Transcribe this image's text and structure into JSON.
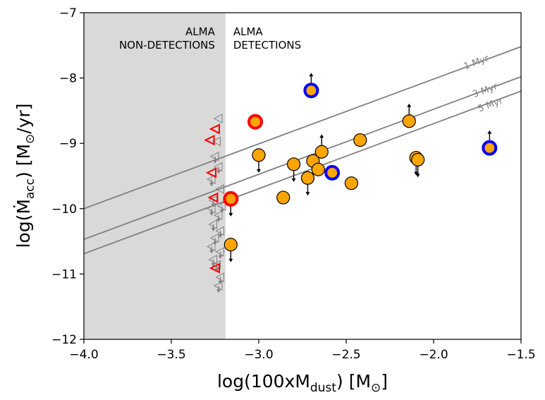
{
  "chart_data": {
    "type": "scatter",
    "title": "",
    "xlabel": "log(100xM",
    "xlabel_sub": "dust",
    "xlabel_unit_open": ") [M",
    "xlabel_unit_sub": "⊙",
    "xlabel_unit_close": "]",
    "ylabel": "log(Ṁ",
    "ylabel_sub": "acc",
    "ylabel_unit_open": ") [M",
    "ylabel_unit_sub": "⊙",
    "ylabel_unit_close": "/yr]",
    "xlim": [
      -4.0,
      -1.5
    ],
    "ylim": [
      -12,
      -7
    ],
    "xticks": [
      -4.0,
      -3.5,
      -3.0,
      -2.5,
      -2.0,
      -1.5
    ],
    "xtick_labels": [
      "−4.0",
      "−3.5",
      "−3.0",
      "−2.5",
      "−2.0",
      "−1.5"
    ],
    "yticks": [
      -12,
      -11,
      -10,
      -9,
      -8,
      -7
    ],
    "ytick_labels": [
      "−12",
      "−11",
      "−10",
      "−9",
      "−8",
      "−7"
    ],
    "grid": false,
    "nondetection_region": {
      "x_range": [
        -4.0,
        -3.19
      ],
      "color": "#d9d9d9",
      "label_left_line1": "ALMA",
      "label_left_line2": "NON-DETECTIONS",
      "label_right_line1": "ALMA",
      "label_right_line2": "DETECTIONS"
    },
    "isochrones": [
      {
        "label": "1 Myr",
        "x": [
          -4.0,
          -1.5
        ],
        "y": [
          -10.0,
          -7.52
        ],
        "color": "#808080",
        "label_at": [
          -1.75,
          -7.8
        ]
      },
      {
        "label": "3 Myr",
        "x": [
          -4.0,
          -1.5
        ],
        "y": [
          -10.47,
          -7.98
        ],
        "color": "#808080",
        "label_at": [
          -1.7,
          -8.23
        ]
      },
      {
        "label": "5 Myr",
        "x": [
          -4.0,
          -1.5
        ],
        "y": [
          -10.69,
          -8.2
        ],
        "color": "#808080",
        "label_at": [
          -1.67,
          -8.45
        ]
      }
    ],
    "colors": {
      "detection_fill": "#ffa500",
      "detection_edge": "#000000",
      "red_ring": "#ff0000",
      "blue_ring": "#0000ff",
      "upper_limit": "#808080"
    },
    "detections": [
      {
        "x": -2.7,
        "y": -8.19,
        "ring": "blue",
        "arrow": "up"
      },
      {
        "x": -3.02,
        "y": -8.67,
        "ring": "red",
        "arrow": "none"
      },
      {
        "x": -3.0,
        "y": -9.18,
        "ring": "none",
        "arrow": "down"
      },
      {
        "x": -2.8,
        "y": -9.32,
        "ring": "none",
        "arrow": "down"
      },
      {
        "x": -2.72,
        "y": -9.53,
        "ring": "none",
        "arrow": "down"
      },
      {
        "x": -2.69,
        "y": -9.27,
        "ring": "none",
        "arrow": "none"
      },
      {
        "x": -2.66,
        "y": -9.4,
        "ring": "none",
        "arrow": "none"
      },
      {
        "x": -2.64,
        "y": -9.13,
        "ring": "none",
        "arrow": "up"
      },
      {
        "x": -2.58,
        "y": -9.45,
        "ring": "blue",
        "arrow": "none"
      },
      {
        "x": -2.47,
        "y": -9.61,
        "ring": "none",
        "arrow": "none"
      },
      {
        "x": -2.42,
        "y": -8.95,
        "ring": "none",
        "arrow": "none"
      },
      {
        "x": -2.86,
        "y": -9.83,
        "ring": "none",
        "arrow": "none"
      },
      {
        "x": -3.16,
        "y": -9.85,
        "ring": "red",
        "arrow": "down"
      },
      {
        "x": -3.16,
        "y": -10.55,
        "ring": "none",
        "arrow": "down"
      },
      {
        "x": -2.14,
        "y": -8.66,
        "ring": "none",
        "arrow": "up"
      },
      {
        "x": -2.1,
        "y": -9.22,
        "ring": "none",
        "arrow": "down"
      },
      {
        "x": -2.09,
        "y": -9.25,
        "ring": "none",
        "arrow": "down"
      },
      {
        "x": -1.68,
        "y": -9.07,
        "ring": "blue",
        "arrow": "up"
      }
    ],
    "nondetections_red": [
      {
        "x": -3.25,
        "y": -8.78
      },
      {
        "x": -3.28,
        "y": -8.95
      },
      {
        "x": -3.27,
        "y": -9.45
      },
      {
        "x": -3.26,
        "y": -9.83
      },
      {
        "x": -3.25,
        "y": -10.91
      }
    ],
    "nondetections_grey": [
      {
        "x": -3.23,
        "y": -8.62,
        "arrow": false
      },
      {
        "x": -3.24,
        "y": -8.97,
        "arrow": false
      },
      {
        "x": -3.25,
        "y": -9.2,
        "arrow": true
      },
      {
        "x": -3.23,
        "y": -9.36,
        "arrow": true
      },
      {
        "x": -3.27,
        "y": -9.55,
        "arrow": true
      },
      {
        "x": -3.22,
        "y": -9.7,
        "arrow": false
      },
      {
        "x": -3.26,
        "y": -9.87,
        "arrow": true
      },
      {
        "x": -3.21,
        "y": -9.96,
        "arrow": true
      },
      {
        "x": -3.27,
        "y": -10.0,
        "arrow": true
      },
      {
        "x": -3.23,
        "y": -10.1,
        "arrow": true
      },
      {
        "x": -3.26,
        "y": -10.24,
        "arrow": true
      },
      {
        "x": -3.22,
        "y": -10.34,
        "arrow": true
      },
      {
        "x": -3.25,
        "y": -10.45,
        "arrow": true
      },
      {
        "x": -3.27,
        "y": -10.58,
        "arrow": true
      },
      {
        "x": -3.22,
        "y": -10.66,
        "arrow": true
      },
      {
        "x": -3.26,
        "y": -10.78,
        "arrow": true
      },
      {
        "x": -3.24,
        "y": -10.86,
        "arrow": true
      },
      {
        "x": -3.22,
        "y": -11.05,
        "arrow": true
      },
      {
        "x": -3.23,
        "y": -11.18,
        "arrow": true
      }
    ]
  }
}
